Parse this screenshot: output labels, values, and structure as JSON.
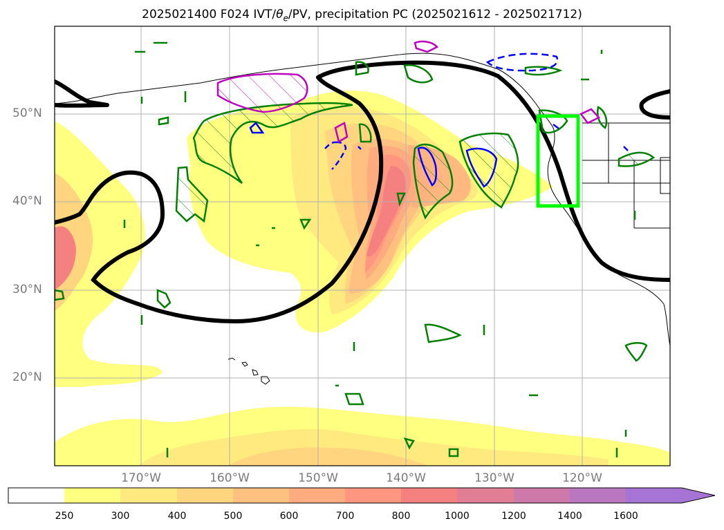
{
  "title_prefix": "2025021400 F024 IVT/",
  "title_theta": "θ",
  "title_theta_sub": "e",
  "title_suffix": "/PV, precipitation PC (2025021612 - 2025021712)",
  "lat_labels": [
    "50°N",
    "40°N",
    "30°N",
    "20°N"
  ],
  "lon_labels": [
    "170°W",
    "160°W",
    "150°W",
    "140°W",
    "130°W",
    "120°W"
  ],
  "colorbar": {
    "levels": [
      "250",
      "300",
      "400",
      "500",
      "600",
      "700",
      "800",
      "1000",
      "1200",
      "1400",
      "1600"
    ],
    "colors": [
      "#ffff80",
      "#ffea80",
      "#ffd580",
      "#ffc080",
      "#ffab80",
      "#ff9680",
      "#f58080",
      "#e17d95",
      "#cd7aaa",
      "#b977bf",
      "#a574d4"
    ]
  },
  "colors": {
    "ivt_low": "#ffff80",
    "ivt_mid": "#ffd580",
    "ivt_high": "#f58080",
    "pv_contour": "#000000",
    "precip_green": "#008000",
    "precip_blue": "#0000ff",
    "precip_magenta": "#c000c0",
    "target_box": "#00ff00",
    "grid": "#b0b0b0"
  }
}
